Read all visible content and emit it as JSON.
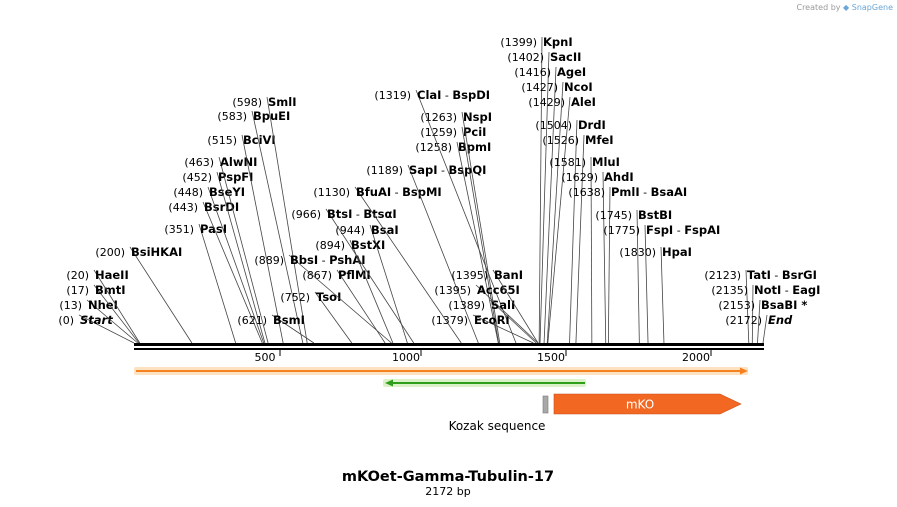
{
  "credit": {
    "prefix": "Created by",
    "brand": "SnapGene"
  },
  "title": "mKOet-Gamma-Tubulin-17",
  "length_label": "2172 bp",
  "sequence_length": 2172,
  "ticks": [
    "500",
    "1000",
    "1500",
    "2000"
  ],
  "sites": [
    {
      "pos": "(0)",
      "name": "Start",
      "italic": true,
      "bp": 0
    },
    {
      "pos": "(13)",
      "name": "NheI",
      "bp": 13
    },
    {
      "pos": "(17)",
      "name": "BmtI",
      "bp": 17
    },
    {
      "pos": "(20)",
      "name": "HaeII",
      "bp": 20
    },
    {
      "pos": "(200)",
      "name": "BsiHKAI",
      "bp": 200
    },
    {
      "pos": "(351)",
      "name": "PasI",
      "bp": 351
    },
    {
      "pos": "(443)",
      "name": "BsrDI",
      "bp": 443
    },
    {
      "pos": "(448)",
      "name": "BseYI",
      "bp": 448
    },
    {
      "pos": "(452)",
      "name": "PspFI",
      "bp": 452
    },
    {
      "pos": "(463)",
      "name": "AlwNI",
      "bp": 463
    },
    {
      "pos": "(515)",
      "name": "BciVI",
      "bp": 515
    },
    {
      "pos": "(583)",
      "name": "BpuEI",
      "bp": 583
    },
    {
      "pos": "(598)",
      "name": "SmlI",
      "bp": 598
    },
    {
      "pos": "(621)",
      "name": "BsmI",
      "bp": 621
    },
    {
      "pos": "(752)",
      "name": "TsoI",
      "bp": 752
    },
    {
      "pos": "(867)",
      "name": "PflMI",
      "bp": 867
    },
    {
      "pos": "(889)",
      "name": "BbsI",
      "iso": "PshAI",
      "bp": 889
    },
    {
      "pos": "(894)",
      "name": "BstXI",
      "bp": 894
    },
    {
      "pos": "(944)",
      "name": "BsaI",
      "bp": 944
    },
    {
      "pos": "(966)",
      "name": "BtsI",
      "iso": "BtsαI",
      "bp": 966
    },
    {
      "pos": "(1130)",
      "name": "BfuAI",
      "iso": "BspMI",
      "bp": 1130
    },
    {
      "pos": "(1189)",
      "name": "SapI",
      "iso": "BspQI",
      "bp": 1189
    },
    {
      "pos": "(1258)",
      "name": "BpmI",
      "bp": 1258
    },
    {
      "pos": "(1259)",
      "name": "PciI",
      "bp": 1259
    },
    {
      "pos": "(1263)",
      "name": "NspI",
      "bp": 1263
    },
    {
      "pos": "(1319)",
      "name": "ClaI",
      "iso": "BspDI",
      "bp": 1319
    },
    {
      "pos": "(1379)",
      "name": "EcoRI",
      "bp": 1379
    },
    {
      "pos": "(1389)",
      "name": "SalI",
      "bp": 1389
    },
    {
      "pos": "(1395)",
      "name": "Acc65I",
      "bp": 1395
    },
    {
      "pos": "(1395)",
      "name": "BanI",
      "bp": 1395
    },
    {
      "pos": "(1399)",
      "name": "KpnI",
      "bp": 1399
    },
    {
      "pos": "(1402)",
      "name": "SacII",
      "bp": 1402
    },
    {
      "pos": "(1416)",
      "name": "AgeI",
      "bp": 1416
    },
    {
      "pos": "(1427)",
      "name": "NcoI",
      "bp": 1427
    },
    {
      "pos": "(1429)",
      "name": "AleI",
      "bp": 1429
    },
    {
      "pos": "(1504)",
      "name": "DrdI",
      "bp": 1504
    },
    {
      "pos": "(1526)",
      "name": "MfeI",
      "bp": 1526
    },
    {
      "pos": "(1581)",
      "name": "MluI",
      "bp": 1581
    },
    {
      "pos": "(1629)",
      "name": "AhdI",
      "bp": 1629
    },
    {
      "pos": "(1638)",
      "name": "PmlI",
      "iso": "BsaAI",
      "bp": 1638
    },
    {
      "pos": "(1745)",
      "name": "BstBI",
      "bp": 1745
    },
    {
      "pos": "(1775)",
      "name": "FspI",
      "iso": "FspAI",
      "bp": 1775
    },
    {
      "pos": "(1830)",
      "name": "HpaI",
      "bp": 1830
    },
    {
      "pos": "(2123)",
      "name": "TatI",
      "iso": "BsrGI",
      "bp": 2123
    },
    {
      "pos": "(2135)",
      "name": "NotI",
      "iso": "EagI",
      "bp": 2135
    },
    {
      "pos": "(2153)",
      "name": "BsaBI",
      "star": true,
      "bp": 2153
    },
    {
      "pos": "(2172)",
      "name": "End",
      "italic": true,
      "bp": 2172
    }
  ],
  "features": {
    "kozak_label": "Kozak sequence",
    "mko_label": "mKO",
    "orange_color": "#f58220",
    "green_color": "#2f9e1a",
    "mko_color": "#f26722"
  }
}
